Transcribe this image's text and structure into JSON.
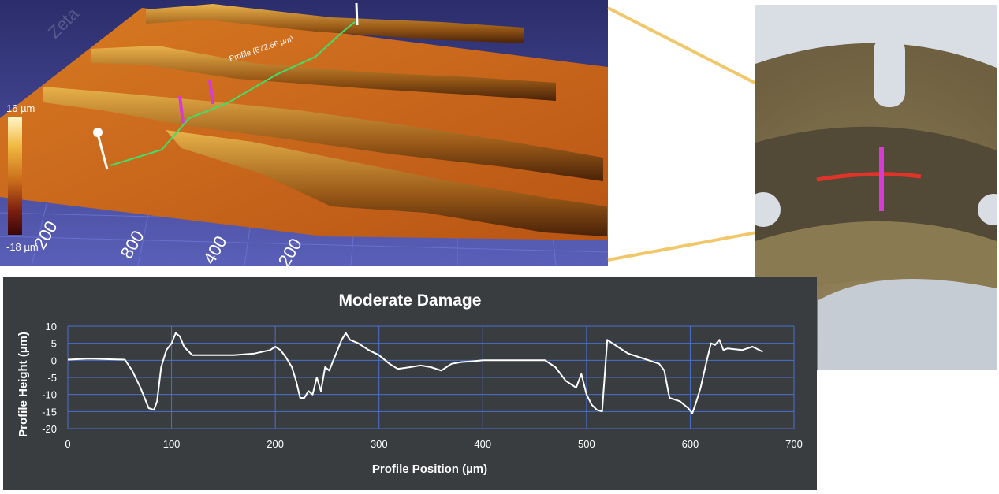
{
  "surface_view": {
    "profile_label": "Profile (672.66 µm)",
    "scale_max": "16 µm",
    "scale_min": "-18 µm",
    "axis_ticks": [
      "200",
      "800",
      "400",
      "200"
    ],
    "watermark": "Zeta"
  },
  "colors": {
    "chart_bg": "#3a3d40",
    "profile_line": "#ffffff",
    "grid": "#4a6fcf",
    "surface": "#c9671c",
    "marker": "#d63bd6",
    "connector": "#f1c76b"
  },
  "chart_data": {
    "type": "line",
    "title": "Moderate Damage",
    "xlabel": "Profile Position (µm)",
    "ylabel": "Profile Height (µm)",
    "xlim": [
      0,
      700
    ],
    "ylim": [
      -20,
      10
    ],
    "xticks": [
      0,
      100,
      200,
      300,
      400,
      500,
      600,
      700
    ],
    "yticks": [
      10,
      5,
      0,
      -5,
      -10,
      -15,
      -20
    ],
    "grid": true,
    "series": [
      {
        "x": [
          0,
          20,
          40,
          55,
          62,
          70,
          78,
          83,
          86,
          90,
          95,
          100,
          104,
          108,
          112,
          120,
          140,
          160,
          180,
          195,
          200,
          205,
          210,
          216,
          220,
          224,
          228,
          232,
          236,
          240,
          244,
          248,
          252,
          256,
          260,
          264,
          268,
          272,
          280,
          290,
          300,
          310,
          318,
          330,
          340,
          350,
          360,
          370,
          380,
          390,
          400,
          420,
          440,
          460,
          470,
          480,
          490,
          495,
          500,
          505,
          510,
          515,
          520,
          525,
          530,
          540,
          550,
          560,
          570,
          575,
          580,
          590,
          598,
          602,
          606,
          610,
          616,
          620,
          624,
          628,
          632,
          636,
          650,
          660,
          670
        ],
        "y": [
          0.2,
          0.5,
          0.3,
          0.2,
          -3,
          -8,
          -14,
          -14.5,
          -12,
          -2,
          3,
          5,
          8,
          7,
          4,
          1.5,
          1.5,
          1.5,
          2,
          3,
          4,
          3,
          1,
          -2,
          -6,
          -11,
          -11,
          -9,
          -10,
          -5,
          -9,
          -2,
          -3,
          0,
          3,
          6,
          8,
          6,
          5,
          3,
          1.5,
          -1,
          -2.5,
          -2,
          -1.5,
          -2,
          -3,
          -1,
          -0.5,
          -0.3,
          0,
          0,
          0,
          0,
          -2,
          -6,
          -8,
          -4,
          -10,
          -13,
          -14.5,
          -15,
          6,
          5,
          4,
          2,
          1,
          0,
          -1,
          -3,
          -11,
          -12,
          -14,
          -15.5,
          -12,
          -8,
          0,
          5,
          4.5,
          6,
          3,
          3.5,
          3,
          4,
          2.5
        ]
      }
    ]
  }
}
